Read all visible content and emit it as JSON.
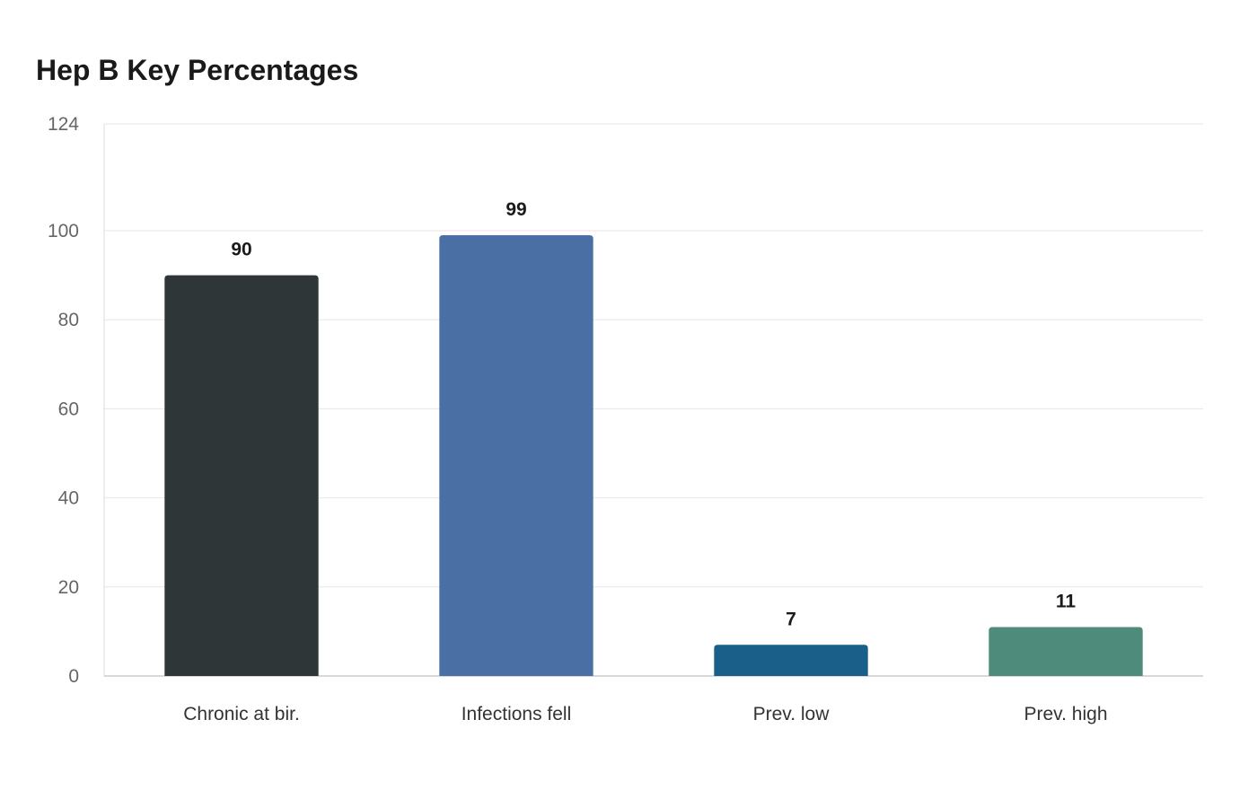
{
  "chart_data": {
    "type": "bar",
    "title": "Hep B Key Percentages",
    "xlabel": "",
    "ylabel": "",
    "categories": [
      "Chronic at bir.",
      "Infections fell",
      "Prev. low",
      "Prev. high"
    ],
    "values": [
      90,
      99,
      7,
      11
    ],
    "colors": [
      "#2e3638",
      "#4a6fa5",
      "#1a5f8a",
      "#4f8b7a"
    ],
    "ylim": [
      0,
      124
    ],
    "yticks": [
      0,
      20,
      40,
      60,
      80,
      100,
      124
    ],
    "grid": true,
    "legend": "none"
  }
}
